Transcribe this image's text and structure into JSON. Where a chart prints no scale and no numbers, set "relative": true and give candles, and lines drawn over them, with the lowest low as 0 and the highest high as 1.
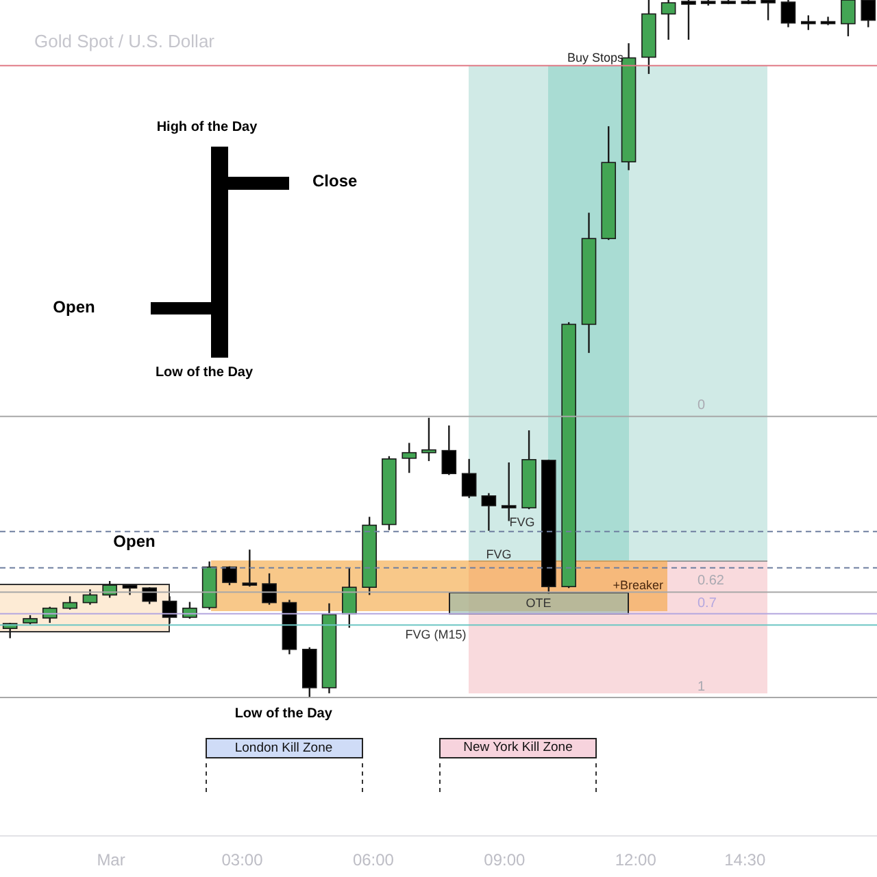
{
  "chart_data": {
    "type": "candlestick",
    "title": "Gold Spot / U.S. Dollar",
    "relative": true,
    "x": [
      -2.31,
      -1.85,
      -1.4,
      -0.94,
      -0.48,
      -0.03,
      0.43,
      0.88,
      1.34,
      1.8,
      2.25,
      2.71,
      3.17,
      3.62,
      4.08,
      4.54,
      4.99,
      5.45,
      5.91,
      6.36,
      6.82,
      7.27,
      7.73,
      8.19,
      8.64,
      9.1,
      9.56,
      10.01,
      10.47,
      10.93,
      11.38,
      11.84,
      12.3,
      12.75,
      13.21,
      13.66,
      14.12,
      14.58,
      15.03,
      15.49,
      15.95,
      16.4,
      16.86,
      17.32
    ],
    "ohlc": [
      [
        0.099,
        0.107,
        0.085,
        0.106
      ],
      [
        0.107,
        0.118,
        0.105,
        0.113
      ],
      [
        0.114,
        0.13,
        0.107,
        0.128
      ],
      [
        0.128,
        0.145,
        0.126,
        0.136
      ],
      [
        0.136,
        0.155,
        0.133,
        0.147
      ],
      [
        0.147,
        0.167,
        0.143,
        0.161
      ],
      [
        0.161,
        0.162,
        0.147,
        0.157
      ],
      [
        0.157,
        0.158,
        0.134,
        0.138
      ],
      [
        0.138,
        0.145,
        0.106,
        0.115
      ],
      [
        0.115,
        0.137,
        0.113,
        0.128
      ],
      [
        0.129,
        0.195,
        0.126,
        0.187
      ],
      [
        0.187,
        0.188,
        0.161,
        0.165
      ],
      [
        0.164,
        0.212,
        0.159,
        0.163
      ],
      [
        0.163,
        0.178,
        0.133,
        0.136
      ],
      [
        0.136,
        0.14,
        0.062,
        0.069
      ],
      [
        0.069,
        0.072,
        0,
        0.014
      ],
      [
        0.014,
        0.135,
        0.006,
        0.119
      ],
      [
        0.12,
        0.186,
        0.1,
        0.158
      ],
      [
        0.158,
        0.259,
        0.147,
        0.247
      ],
      [
        0.248,
        0.346,
        0.24,
        0.342
      ],
      [
        0.343,
        0.365,
        0.322,
        0.351
      ],
      [
        0.351,
        0.401,
        0.339,
        0.355
      ],
      [
        0.354,
        0.39,
        0.319,
        0.321
      ],
      [
        0.321,
        0.342,
        0.286,
        0.289
      ],
      [
        0.289,
        0.293,
        0.239,
        0.275
      ],
      [
        0.275,
        0.337,
        0.253,
        0.272
      ],
      [
        0.272,
        0.383,
        0.27,
        0.341
      ],
      [
        0.34,
        0.341,
        0.149,
        0.159
      ],
      [
        0.159,
        0.538,
        0.157,
        0.535
      ],
      [
        0.535,
        0.695,
        0.494,
        0.658
      ],
      [
        0.658,
        0.819,
        0.656,
        0.767
      ],
      [
        0.768,
        0.938,
        0.756,
        0.917
      ],
      [
        0.918,
        1,
        0.894,
        0.98
      ],
      [
        0.98,
        1,
        0.943,
        0.996
      ],
      [
        0.998,
        1,
        0.943,
        0.994
      ],
      [
        0.998,
        1,
        0.992,
        0.996
      ],
      [
        0.998,
        1,
        0.994,
        0.996
      ],
      [
        0.998,
        1,
        0.994,
        0.996
      ],
      [
        1,
        1,
        0.971,
        0.996
      ],
      [
        0.997,
        1,
        0.961,
        0.967
      ],
      [
        0.969,
        0.978,
        0.957,
        0.968
      ],
      [
        0.969,
        0.976,
        0.964,
        0.968
      ],
      [
        0.966,
        1,
        0.948,
        1
      ],
      [
        1,
        1,
        0.961,
        0.971
      ]
    ],
    "colors": [
      "#43a554",
      "#43a554",
      "#43a554",
      "#43a554",
      "#43a554",
      "#43a554",
      "#000000",
      "#000000",
      "#000000",
      "#43a554",
      "#43a554",
      "#000000",
      "#000000",
      "#000000",
      "#000000",
      "#000000",
      "#43a554",
      "#43a554",
      "#43a554",
      "#43a554",
      "#43a554",
      "#43a554",
      "#000000",
      "#000000",
      "#000000",
      "#000000",
      "#43a554",
      "#000000",
      "#43a554",
      "#43a554",
      "#43a554",
      "#43a554",
      "#43a554",
      "#43a554",
      "#000000",
      "#000000",
      "#000000",
      "#000000",
      "#000000",
      "#000000",
      "#000000",
      "#000000",
      "#43a554",
      "#000000"
    ],
    "xlim": [
      -2.54,
      17.52
    ],
    "xticks": [
      {
        "value": 0,
        "label": "Mar"
      },
      {
        "value": 3,
        "label": "03:00"
      },
      {
        "value": 6,
        "label": "06:00"
      },
      {
        "value": 9,
        "label": "09:00"
      },
      {
        "value": 12,
        "label": "12:00"
      },
      {
        "value": 14.5,
        "label": "14:30"
      }
    ],
    "ref_lines": [
      {
        "axis": "y",
        "value": 0.906,
        "label": "Buy Stops",
        "color": "#e07a86"
      },
      {
        "axis": "y",
        "value": 0.238,
        "label": "FVG",
        "color": "#6f7fa0",
        "line_style": "dashed"
      },
      {
        "axis": "y",
        "value": 0.186,
        "label": "FVG",
        "color": "#6f7fa0",
        "line_style": "dashed"
      },
      {
        "axis": "y",
        "value": 0.104,
        "label": "FVG (M15)",
        "color": "#6ec7c4"
      },
      {
        "axis": "y",
        "value": 0.403,
        "color": "#a8a8a8"
      },
      {
        "axis": "y",
        "value": 0.151,
        "color": "#a8a8a8"
      },
      {
        "axis": "y",
        "value": 0.12,
        "color": "#b4a7df"
      },
      {
        "axis": "y",
        "value": 0,
        "color": "#a8a8a8"
      }
    ],
    "annotations": [
      "High of the Day",
      "Close",
      "Open",
      "Low of the Day",
      "Open",
      {
        "text": "Low of the Day",
        "x": 4.54,
        "y": 0
      },
      "+Breaker",
      "OTE",
      "0",
      "0.62",
      "0.7",
      "1",
      "London Kill Zone",
      "New York Kill Zone"
    ]
  }
}
